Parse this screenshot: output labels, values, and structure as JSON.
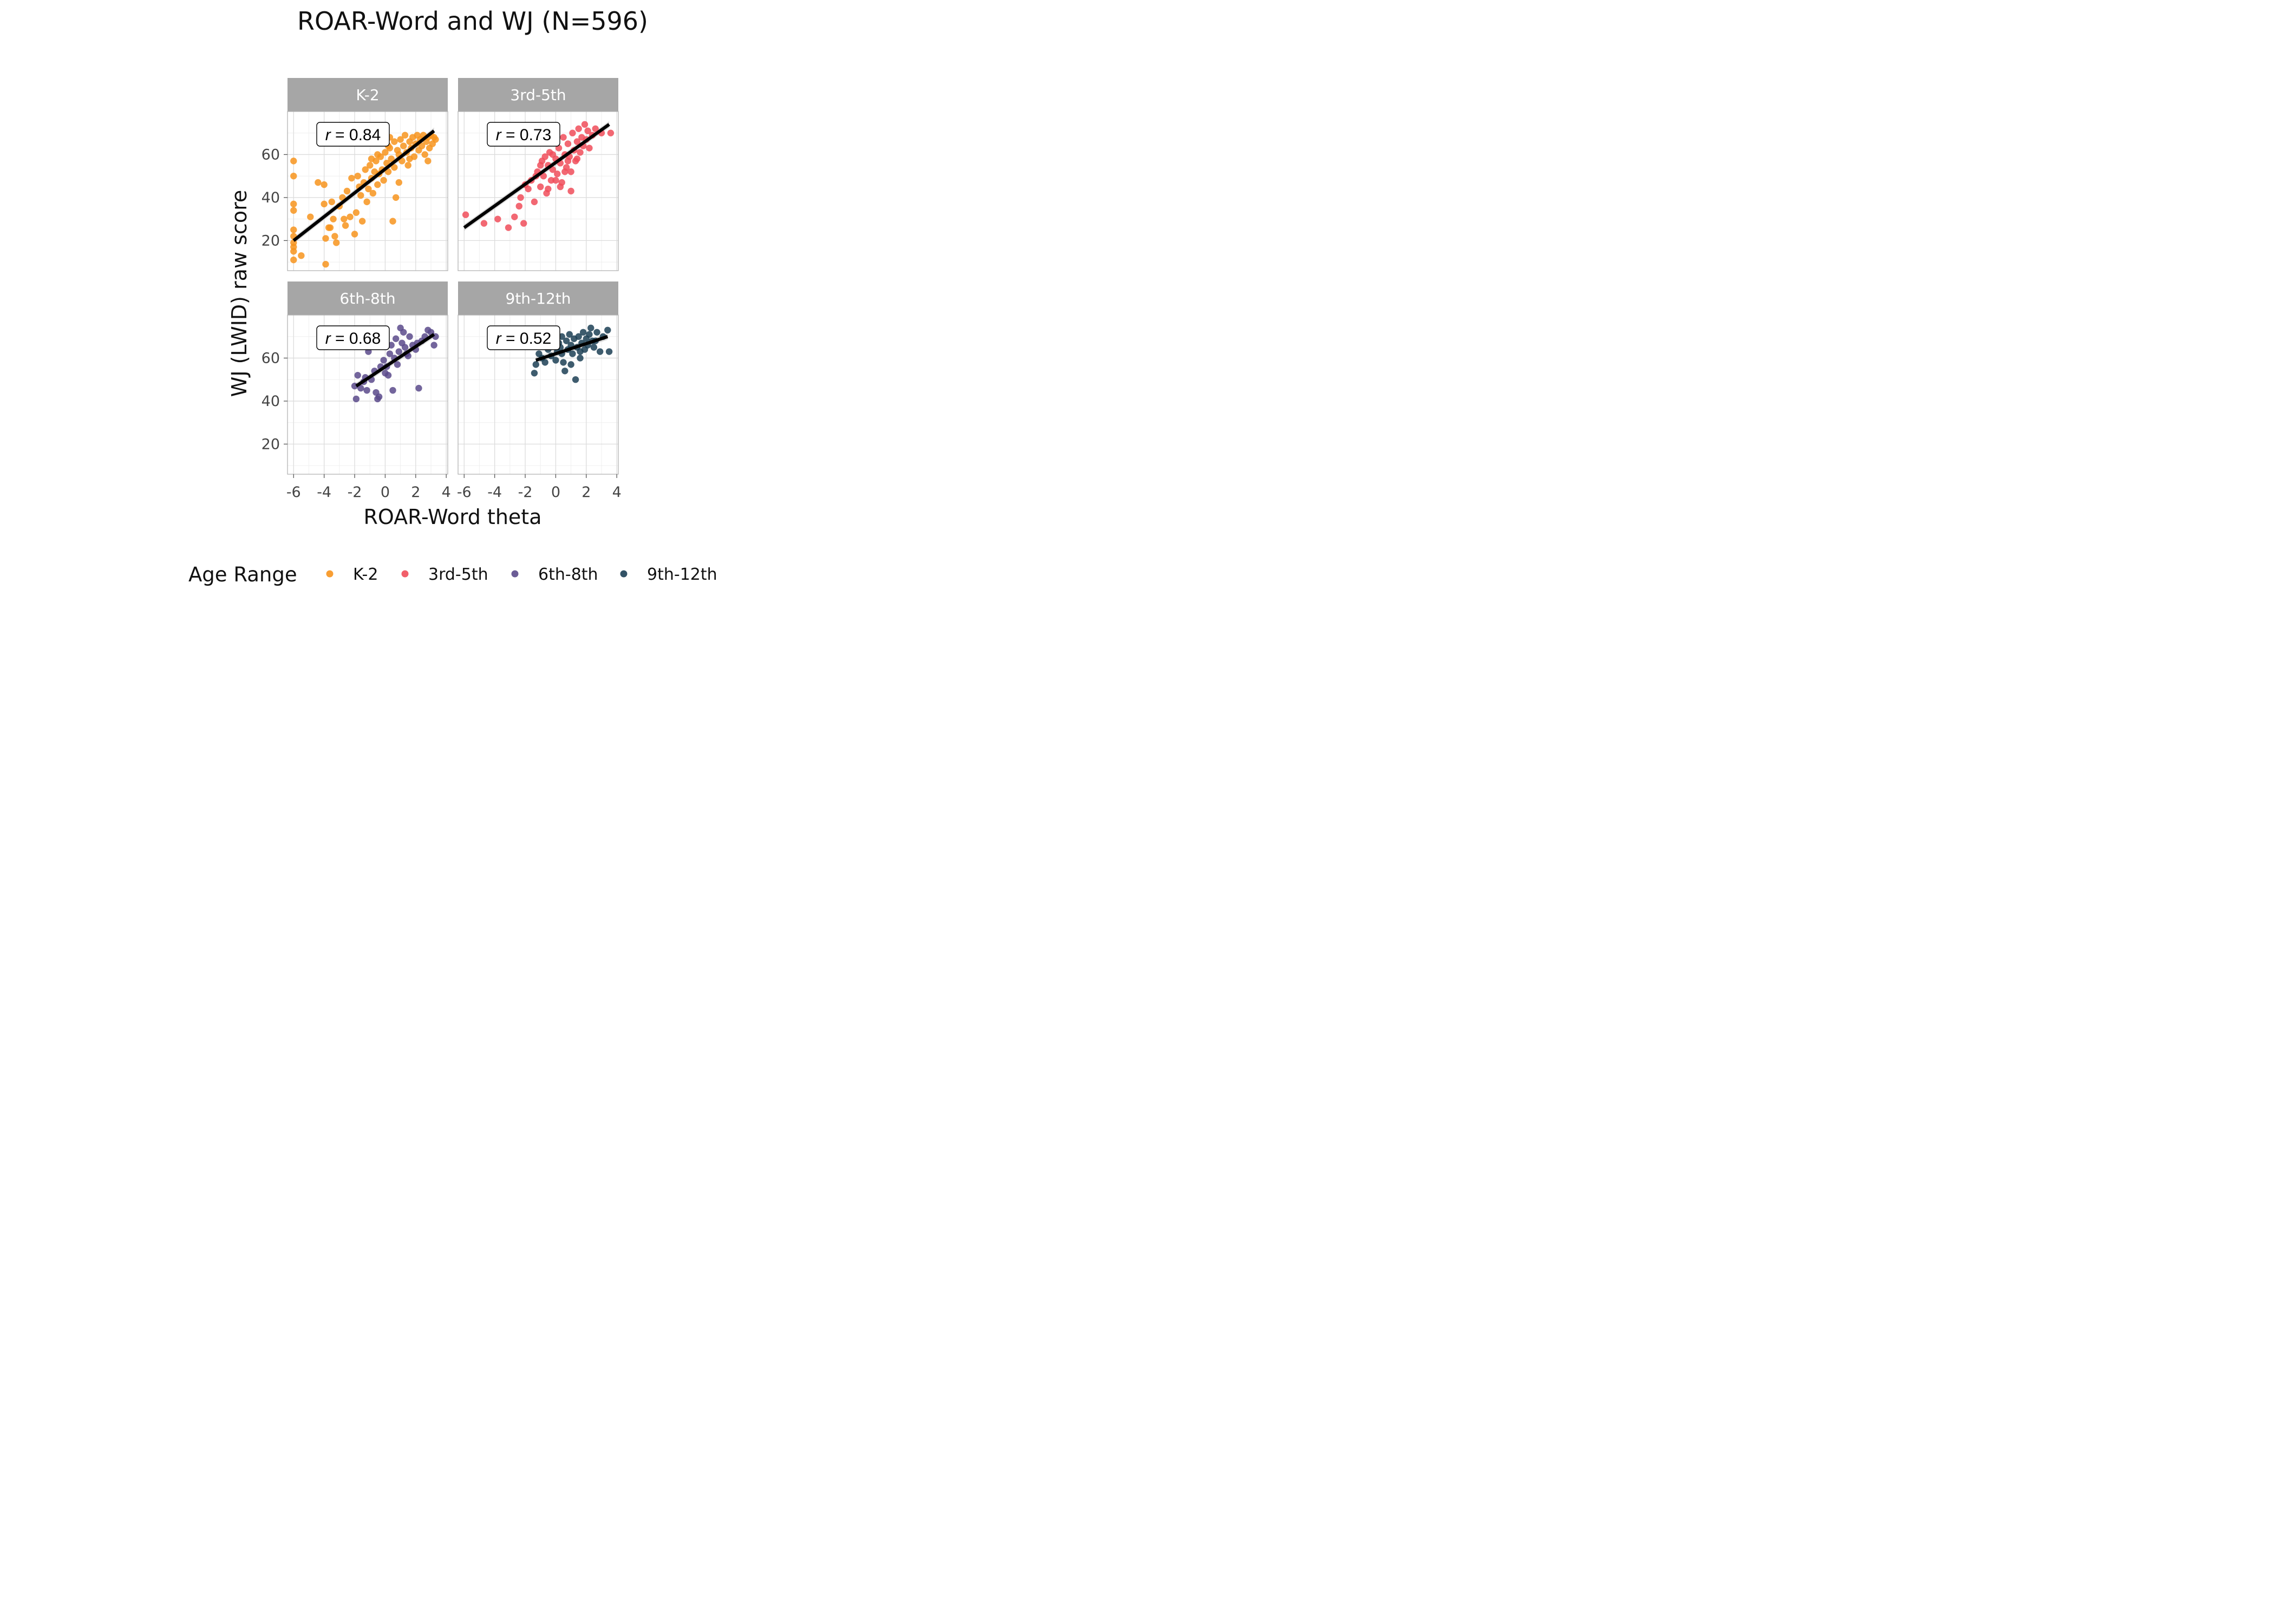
{
  "chart_data": {
    "type": "scatter",
    "title": "ROAR-Word and WJ (N=596)",
    "xlabel": "ROAR-Word theta",
    "ylabel": "WJ (LWID) raw score",
    "xlim": [
      -6.4,
      4.1
    ],
    "ylim": [
      6,
      80
    ],
    "x_ticks": [
      -6,
      -4,
      -2,
      0,
      2,
      4
    ],
    "x_tick_labels": [
      "-6",
      "-4",
      "-2",
      "0",
      "2",
      "4"
    ],
    "y_ticks": [
      20,
      40,
      60
    ],
    "y_tick_labels": [
      "20",
      "40",
      "60"
    ],
    "grid": true,
    "legend": {
      "title": "Age Range",
      "position": "bottom"
    },
    "panels": [
      {
        "name": "K-2",
        "color": "#F7941D",
        "r_text": "0.84",
        "fit": {
          "x": [
            -6,
            3.2
          ],
          "y": [
            20,
            71
          ]
        },
        "points": [
          [
            -6,
            57
          ],
          [
            -6,
            50
          ],
          [
            -6,
            37
          ],
          [
            -6,
            34
          ],
          [
            -6,
            25
          ],
          [
            -6,
            22
          ],
          [
            -6,
            19
          ],
          [
            -6,
            17
          ],
          [
            -6,
            15
          ],
          [
            -6,
            11
          ],
          [
            -5.5,
            13
          ],
          [
            -4.9,
            31
          ],
          [
            -4.4,
            47
          ],
          [
            -4.0,
            46
          ],
          [
            -4.0,
            37
          ],
          [
            -3.9,
            21
          ],
          [
            -3.9,
            9
          ],
          [
            -3.7,
            26
          ],
          [
            -3.5,
            38
          ],
          [
            -3.4,
            30
          ],
          [
            -3.3,
            22
          ],
          [
            -3.2,
            19
          ],
          [
            -3.0,
            36
          ],
          [
            -2.8,
            40
          ],
          [
            -2.6,
            27
          ],
          [
            -2.5,
            43
          ],
          [
            -2.3,
            31
          ],
          [
            -2.2,
            49
          ],
          [
            -2.0,
            23
          ],
          [
            -1.9,
            33
          ],
          [
            -1.8,
            50
          ],
          [
            -1.6,
            41
          ],
          [
            -1.5,
            29
          ],
          [
            -1.4,
            47
          ],
          [
            -1.3,
            53
          ],
          [
            -1.2,
            38
          ],
          [
            -1.1,
            44
          ],
          [
            -1.0,
            55
          ],
          [
            -0.9,
            49
          ],
          [
            -0.8,
            42
          ],
          [
            -0.7,
            52
          ],
          [
            -0.6,
            57
          ],
          [
            -0.5,
            46
          ],
          [
            -0.4,
            51
          ],
          [
            -0.3,
            59
          ],
          [
            -0.2,
            53
          ],
          [
            -0.1,
            48
          ],
          [
            0.0,
            61
          ],
          [
            0.1,
            56
          ],
          [
            0.2,
            52
          ],
          [
            0.3,
            63
          ],
          [
            0.4,
            58
          ],
          [
            0.5,
            29
          ],
          [
            0.6,
            66
          ],
          [
            0.6,
            54
          ],
          [
            0.7,
            40
          ],
          [
            0.8,
            62
          ],
          [
            0.9,
            60
          ],
          [
            1.0,
            67
          ],
          [
            1.1,
            57
          ],
          [
            1.2,
            64
          ],
          [
            1.3,
            69
          ],
          [
            1.4,
            61
          ],
          [
            1.5,
            55
          ],
          [
            1.6,
            66
          ],
          [
            1.7,
            63
          ],
          [
            1.8,
            68
          ],
          [
            1.9,
            59
          ],
          [
            2.0,
            65
          ],
          [
            2.1,
            69
          ],
          [
            2.2,
            62
          ],
          [
            2.3,
            67
          ],
          [
            2.4,
            64
          ],
          [
            2.5,
            69
          ],
          [
            2.6,
            60
          ],
          [
            2.7,
            66
          ],
          [
            2.8,
            68
          ],
          [
            2.9,
            63
          ],
          [
            3.0,
            69
          ],
          [
            3.1,
            65
          ],
          [
            3.2,
            68
          ],
          [
            3.3,
            67
          ],
          [
            -1.7,
            45
          ],
          [
            -0.9,
            58
          ],
          [
            0.2,
            64
          ],
          [
            0.9,
            47
          ],
          [
            1.6,
            58
          ],
          [
            2.8,
            57
          ],
          [
            -2.7,
            30
          ],
          [
            -3.6,
            26
          ],
          [
            -0.5,
            60
          ],
          [
            0.3,
            68
          ]
        ]
      },
      {
        "name": "3rd-5th",
        "color": "#F04E5A",
        "r_text": "0.73",
        "fit": {
          "x": [
            -6,
            3.5
          ],
          "y": [
            26,
            74
          ]
        },
        "points": [
          [
            -5.9,
            32
          ],
          [
            -4.7,
            28
          ],
          [
            -3.8,
            30
          ],
          [
            -3.1,
            26
          ],
          [
            -2.7,
            31
          ],
          [
            -2.4,
            36
          ],
          [
            -2.1,
            28
          ],
          [
            -2.3,
            40
          ],
          [
            -1.8,
            44
          ],
          [
            -1.6,
            48
          ],
          [
            -1.4,
            38
          ],
          [
            -1.2,
            52
          ],
          [
            -1.0,
            45
          ],
          [
            -0.9,
            57
          ],
          [
            -0.8,
            50
          ],
          [
            -0.6,
            42
          ],
          [
            -0.5,
            55
          ],
          [
            -0.4,
            61
          ],
          [
            -0.3,
            48
          ],
          [
            -0.2,
            53
          ],
          [
            -0.1,
            66
          ],
          [
            0.0,
            58
          ],
          [
            0.1,
            51
          ],
          [
            0.2,
            63
          ],
          [
            0.3,
            56
          ],
          [
            0.4,
            47
          ],
          [
            0.5,
            68
          ],
          [
            0.6,
            60
          ],
          [
            0.7,
            54
          ],
          [
            0.8,
            65
          ],
          [
            0.9,
            59
          ],
          [
            1.0,
            52
          ],
          [
            1.1,
            70
          ],
          [
            1.2,
            62
          ],
          [
            1.3,
            57
          ],
          [
            1.4,
            66
          ],
          [
            1.5,
            72
          ],
          [
            1.6,
            61
          ],
          [
            1.7,
            68
          ],
          [
            1.8,
            64
          ],
          [
            1.9,
            74
          ],
          [
            2.0,
            67
          ],
          [
            2.1,
            71
          ],
          [
            2.2,
            63
          ],
          [
            2.4,
            69
          ],
          [
            2.6,
            72
          ],
          [
            3.0,
            70
          ],
          [
            3.6,
            70
          ],
          [
            -2.0,
            46
          ],
          [
            -1.3,
            50
          ],
          [
            -0.7,
            59
          ],
          [
            0.3,
            45
          ],
          [
            1.0,
            43
          ],
          [
            -0.2,
            60
          ],
          [
            0.6,
            52
          ],
          [
            -1.0,
            55
          ],
          [
            1.4,
            58
          ],
          [
            0.0,
            48
          ],
          [
            -0.5,
            44
          ],
          [
            0.8,
            57
          ]
        ]
      },
      {
        "name": "6th-8th",
        "color": "#5B4A8B",
        "r_text": "0.68",
        "fit": {
          "x": [
            -1.9,
            3.2
          ],
          "y": [
            47,
            71
          ]
        },
        "points": [
          [
            -2.0,
            47
          ],
          [
            -1.9,
            41
          ],
          [
            -1.8,
            52
          ],
          [
            -1.6,
            46
          ],
          [
            -1.4,
            49
          ],
          [
            -1.2,
            45
          ],
          [
            -1.1,
            63
          ],
          [
            -0.9,
            50
          ],
          [
            -0.7,
            54
          ],
          [
            -0.6,
            44
          ],
          [
            -0.5,
            41
          ],
          [
            -0.4,
            42
          ],
          [
            -0.3,
            56
          ],
          [
            -0.1,
            59
          ],
          [
            0.0,
            53
          ],
          [
            0.1,
            56
          ],
          [
            0.3,
            62
          ],
          [
            0.4,
            66
          ],
          [
            0.5,
            45
          ],
          [
            0.6,
            60
          ],
          [
            0.7,
            69
          ],
          [
            0.8,
            57
          ],
          [
            0.9,
            63
          ],
          [
            1.0,
            74
          ],
          [
            1.1,
            67
          ],
          [
            1.2,
            72
          ],
          [
            1.3,
            65
          ],
          [
            1.5,
            61
          ],
          [
            1.6,
            70
          ],
          [
            1.8,
            66
          ],
          [
            2.0,
            64
          ],
          [
            2.2,
            46
          ],
          [
            2.4,
            68
          ],
          [
            2.6,
            70
          ],
          [
            2.8,
            73
          ],
          [
            3.0,
            72
          ],
          [
            3.2,
            66
          ],
          [
            3.3,
            70
          ],
          [
            -1.3,
            51
          ],
          [
            0.2,
            52
          ],
          [
            1.4,
            62
          ],
          [
            2.1,
            67
          ]
        ]
      },
      {
        "name": "9th-12th",
        "color": "#1C3F55",
        "r_text": "0.52",
        "fit": {
          "x": [
            -1.3,
            3.4
          ],
          "y": [
            59,
            70
          ]
        },
        "points": [
          [
            -1.4,
            53
          ],
          [
            -1.3,
            57
          ],
          [
            -1.1,
            62
          ],
          [
            -0.9,
            60
          ],
          [
            -0.7,
            58
          ],
          [
            -0.5,
            64
          ],
          [
            -0.3,
            61
          ],
          [
            -0.2,
            66
          ],
          [
            0.0,
            59
          ],
          [
            0.1,
            63
          ],
          [
            0.2,
            67
          ],
          [
            0.3,
            65
          ],
          [
            0.4,
            62
          ],
          [
            0.5,
            58
          ],
          [
            0.6,
            54
          ],
          [
            0.7,
            68
          ],
          [
            0.8,
            64
          ],
          [
            0.9,
            71
          ],
          [
            1.0,
            66
          ],
          [
            1.1,
            62
          ],
          [
            1.2,
            69
          ],
          [
            1.3,
            50
          ],
          [
            1.4,
            65
          ],
          [
            1.5,
            70
          ],
          [
            1.6,
            63
          ],
          [
            1.7,
            67
          ],
          [
            1.8,
            72
          ],
          [
            1.9,
            64
          ],
          [
            2.0,
            69
          ],
          [
            2.1,
            66
          ],
          [
            2.2,
            71
          ],
          [
            2.3,
            74
          ],
          [
            2.4,
            68
          ],
          [
            2.5,
            65
          ],
          [
            2.7,
            72
          ],
          [
            2.9,
            63
          ],
          [
            3.1,
            70
          ],
          [
            3.4,
            73
          ],
          [
            3.5,
            63
          ],
          [
            0.4,
            70
          ],
          [
            1.0,
            57
          ],
          [
            1.6,
            60
          ],
          [
            2.6,
            68
          ]
        ]
      }
    ]
  }
}
